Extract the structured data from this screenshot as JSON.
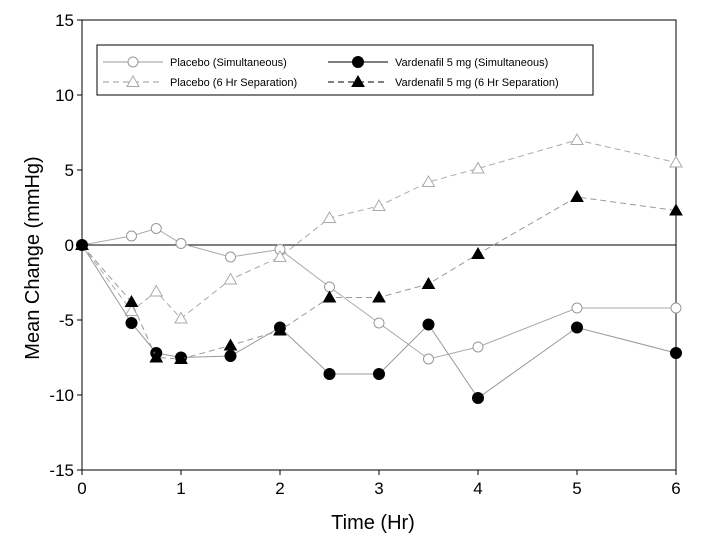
{
  "chart_data": {
    "type": "line",
    "xlabel": "Time (Hr)",
    "ylabel": "Mean Change (mmHg)",
    "xlim": [
      0,
      6
    ],
    "ylim": [
      -15,
      15
    ],
    "x_ticks": [
      0,
      1,
      2,
      3,
      4,
      5,
      6
    ],
    "y_ticks": [
      -15,
      -10,
      -5,
      0,
      5,
      10,
      15
    ],
    "grid": false,
    "legend_position": "top",
    "reference_line_y": 0,
    "series": [
      {
        "name": "Placebo (Simultaneous)",
        "marker": "open-circle",
        "line": "solid",
        "color": "#aaaaaa",
        "x": [
          0,
          0.5,
          0.75,
          1,
          1.5,
          2,
          2.5,
          3,
          3.5,
          4,
          5,
          6
        ],
        "y": [
          0,
          0.6,
          1.1,
          0.1,
          -0.8,
          -0.3,
          -2.8,
          -5.2,
          -7.6,
          -6.8,
          -4.2,
          -4.2
        ]
      },
      {
        "name": "Placebo (6 Hr Separation)",
        "marker": "open-triangle",
        "line": "dashed",
        "color": "#aaaaaa",
        "x": [
          0,
          0.5,
          0.75,
          1,
          1.5,
          2,
          2.5,
          3,
          3.5,
          4,
          5,
          6
        ],
        "y": [
          0,
          -4.4,
          -3.1,
          -4.9,
          -2.3,
          -0.8,
          1.8,
          2.6,
          4.2,
          5.1,
          7.0,
          5.5
        ]
      },
      {
        "name": "Vardenafil 5 mg (Simultaneous)",
        "marker": "filled-circle",
        "line": "solid",
        "color": "#999999",
        "x": [
          0,
          0.5,
          0.75,
          1,
          1.5,
          2,
          2.5,
          3,
          3.5,
          4,
          5,
          6
        ],
        "y": [
          0,
          -5.2,
          -7.2,
          -7.5,
          -7.4,
          -5.5,
          -8.6,
          -8.6,
          -5.3,
          -10.2,
          -5.5,
          -7.2
        ]
      },
      {
        "name": "Vardenafil 5 mg (6 Hr Separation)",
        "marker": "filled-triangle",
        "line": "dashed",
        "color": "#999999",
        "x": [
          0,
          0.5,
          0.75,
          1,
          1.5,
          2,
          2.5,
          3,
          3.5,
          4,
          5,
          6
        ],
        "y": [
          0,
          -3.8,
          -7.5,
          -7.6,
          -6.7,
          -5.7,
          -3.5,
          -3.5,
          -2.6,
          -0.6,
          3.2,
          2.3
        ]
      }
    ]
  }
}
